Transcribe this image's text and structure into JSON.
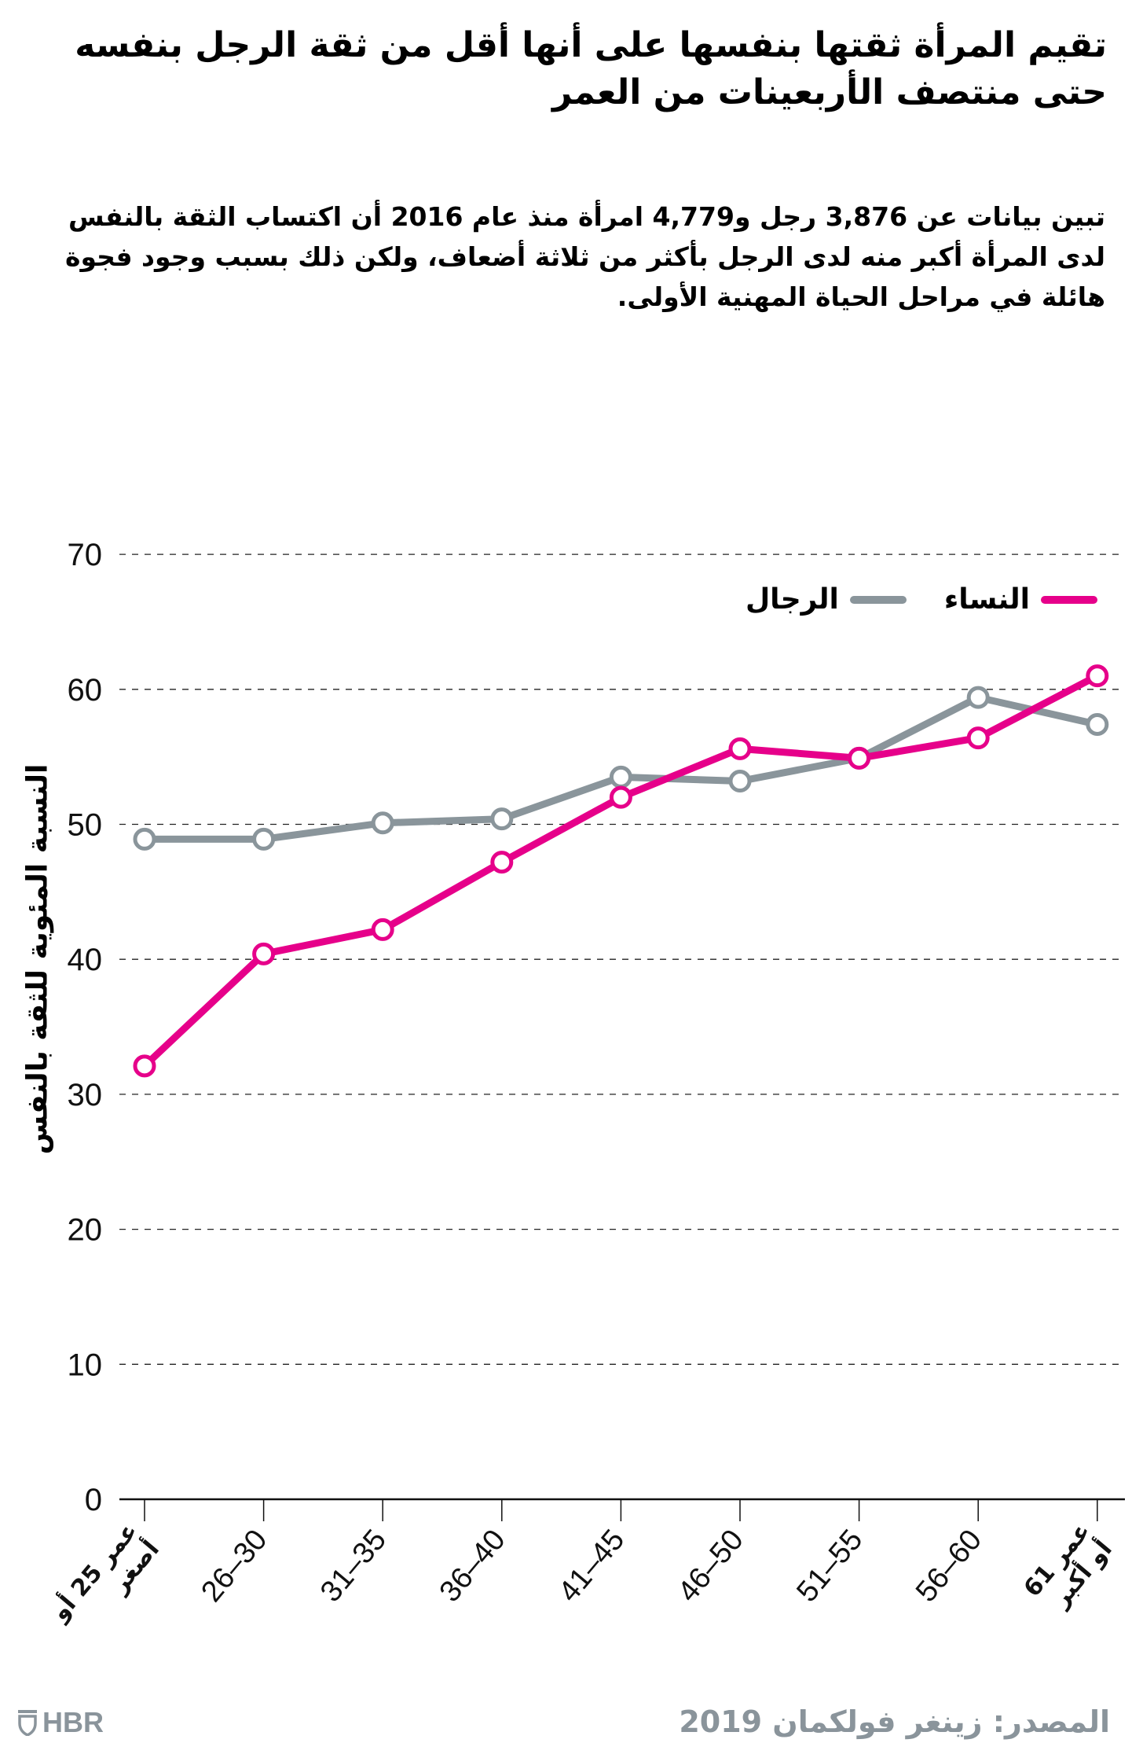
{
  "header": {
    "title": "تقيم المرأة ثقتها بنفسها على أنها أقل من ثقة الرجل بنفسه حتى منتصف الأربعينات من العمر",
    "subtitle": "تبين بيانات عن 3,876 رجل و4,779 امرأة منذ عام 2016 أن اكتساب الثقة بالنفس لدى المرأة أكبر منه لدى الرجل بأكثر من ثلاثة أضعاف، ولكن ذلك بسبب وجود فجوة هائلة في مراحل الحياة المهنية الأولى."
  },
  "legend": {
    "women_label": "النساء",
    "men_label": "الرجال"
  },
  "colors": {
    "women": "#E6008A",
    "men": "#8A959B",
    "grid": "#222222",
    "footer": "#8A949B"
  },
  "footer": {
    "source": "المصدر: زينغر فولكمان 2019",
    "logo": "HBR"
  },
  "chart_data": {
    "type": "line",
    "title": "تقيم المرأة ثقتها بنفسها على أنها أقل من ثقة الرجل بنفسه حتى منتصف الأربعينات من العمر",
    "subtitle": "تبين بيانات عن 3,876 رجل و4,779 امرأة منذ عام 2016 أن اكتساب الثقة بالنفس لدى المرأة أكبر منه لدى الرجل بأكثر من ثلاثة أضعاف، ولكن ذلك بسبب وجود فجوة هائلة في مراحل الحياة المهنية الأولى.",
    "xlabel": "",
    "ylabel": "النسبة المئوية للثقة بالنفس",
    "categories": [
      "عمر 25 أو أصغر",
      "26–30",
      "31–35",
      "36–40",
      "41–45",
      "46–50",
      "51–55",
      "56–60",
      "عمر 61 أو أكبر"
    ],
    "category_lines": [
      [
        "عمر 25 أو",
        "أصغر"
      ],
      [
        "26–30"
      ],
      [
        "31–35"
      ],
      [
        "36–40"
      ],
      [
        "41–45"
      ],
      [
        "46–50"
      ],
      [
        "51–55"
      ],
      [
        "56–60"
      ],
      [
        "عمر 61",
        "أو أكبر"
      ]
    ],
    "series": [
      {
        "name": "النساء",
        "color": "#E6008A",
        "values": [
          32.1,
          40.4,
          42.2,
          47.2,
          52.0,
          55.6,
          54.9,
          56.4,
          61.0
        ]
      },
      {
        "name": "الرجال",
        "color": "#8A959B",
        "values": [
          48.9,
          48.9,
          50.1,
          50.4,
          53.5,
          53.2,
          54.9,
          59.4,
          57.4
        ]
      }
    ],
    "ylim": [
      0,
      70
    ],
    "yticks": [
      0,
      10,
      20,
      30,
      40,
      50,
      60,
      70
    ],
    "grid": true,
    "grid_style": "dashed horizontal",
    "legend_position": "top-right",
    "markers": "hollow circles"
  }
}
